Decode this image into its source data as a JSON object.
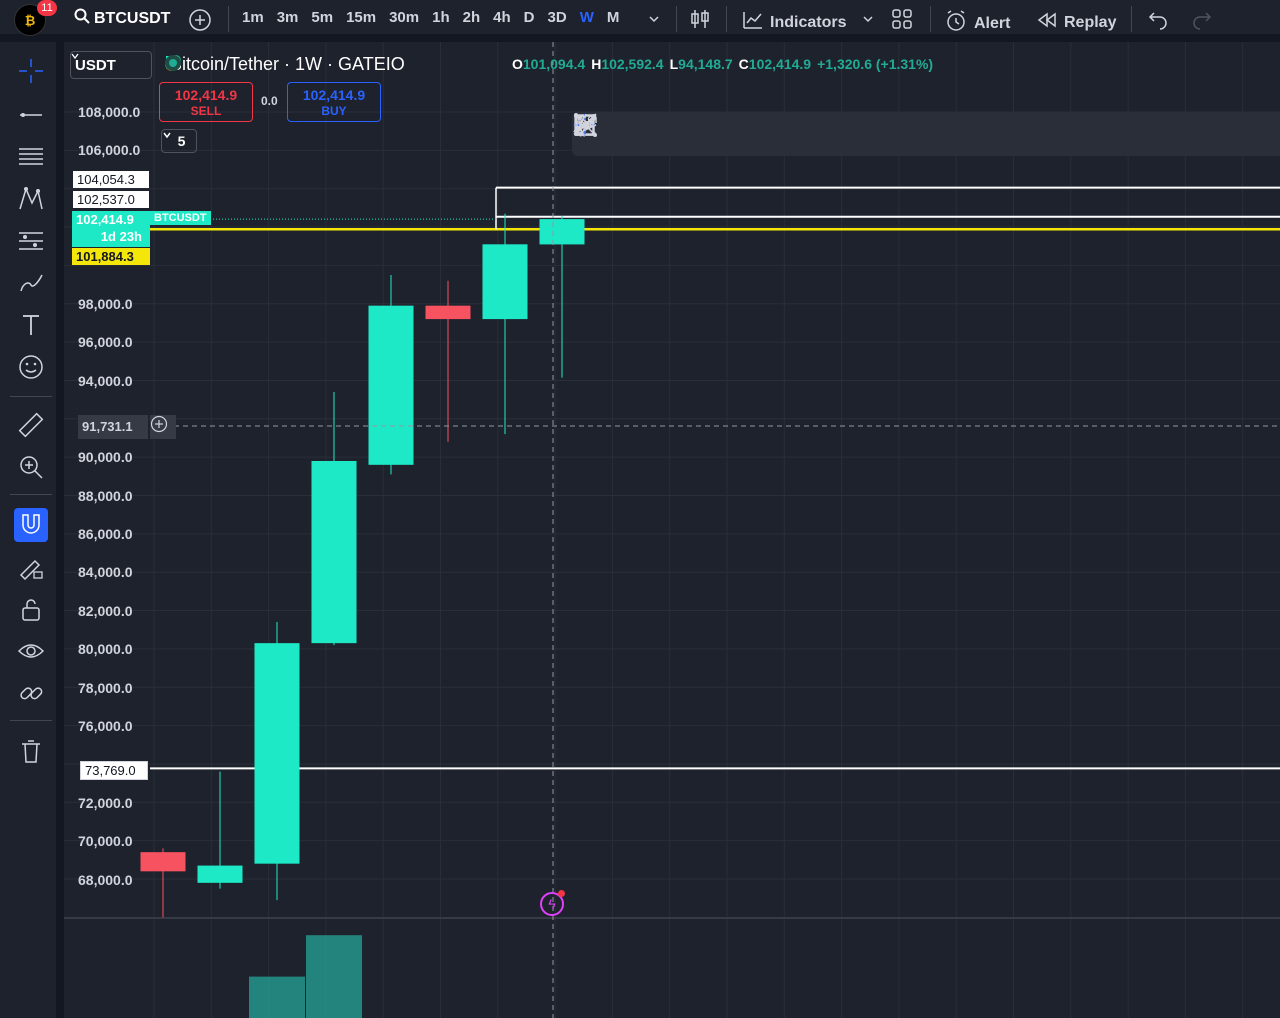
{
  "topbar": {
    "notif_count": "11",
    "symbol": "BTCUSDT",
    "intervals": [
      "1m",
      "3m",
      "5m",
      "15m",
      "30m",
      "1h",
      "2h",
      "4h",
      "D",
      "3D",
      "W",
      "M"
    ],
    "active_interval": "W",
    "indicators_label": "Indicators",
    "alert_label": "Alert",
    "replay_label": "Replay"
  },
  "legend": {
    "currency": "USDT",
    "title": "Bitcoin/Tether · 1W · GATEIO",
    "o_label": "O",
    "o_val": "101,094.4",
    "h_label": "H",
    "h_val": "102,592.4",
    "l_label": "L",
    "l_val": "94,148.7",
    "c_label": "C",
    "c_val": "102,414.9",
    "change": "+1,320.6 (+1.31%)"
  },
  "trade": {
    "sell_price": "102,414.9",
    "sell_label": "SELL",
    "spread": "0.0",
    "buy_price": "102,414.9",
    "buy_label": "BUY",
    "collapse_count": "5"
  },
  "price_axis": {
    "labels": [
      "108,000.0",
      "106,000.0",
      "98,000.0",
      "96,000.0",
      "94,000.0",
      "90,000.0",
      "88,000.0",
      "86,000.0",
      "84,000.0",
      "82,000.0",
      "80,000.0",
      "78,000.0",
      "76,000.0",
      "72,000.0",
      "70,000.0",
      "68,000.0"
    ],
    "tag_104": "104,054.3",
    "tag_102": "102,537.0",
    "tag_last": "102,414.9",
    "tag_countdown": "1d 23h",
    "tag_sym": "BTCUSDT",
    "tag_yellow": "101,884.3",
    "tag_cursor": "91,731.1",
    "tag_73": "73,769.0"
  },
  "colors": {
    "up": "#1de9c6",
    "down": "#f7525f",
    "yellow": "#f5e60a",
    "bg": "#1e222d"
  },
  "chart_data": {
    "type": "candlestick",
    "candles": [
      {
        "o": 69400,
        "h": 69600,
        "l": 66000,
        "c": 68400
      },
      {
        "o": 67800,
        "h": 73600,
        "l": 67500,
        "c": 68700
      },
      {
        "o": 68800,
        "h": 81400,
        "l": 66900,
        "c": 80300
      },
      {
        "o": 80300,
        "h": 93400,
        "l": 80200,
        "c": 89800
      },
      {
        "o": 89600,
        "h": 99500,
        "l": 89100,
        "c": 97900
      },
      {
        "o": 97900,
        "h": 99200,
        "l": 90800,
        "c": 97200
      },
      {
        "o": 97200,
        "h": 102700,
        "l": 91200,
        "c": 101100
      },
      {
        "o": 101094.4,
        "h": 102592.4,
        "l": 94148.7,
        "c": 102414.9
      }
    ],
    "horizontal_lines": [
      104054.3,
      102537.0,
      101884.3,
      73769.0
    ],
    "volume": [
      0,
      0,
      0.45,
      0.9,
      0,
      0,
      0,
      0
    ]
  }
}
